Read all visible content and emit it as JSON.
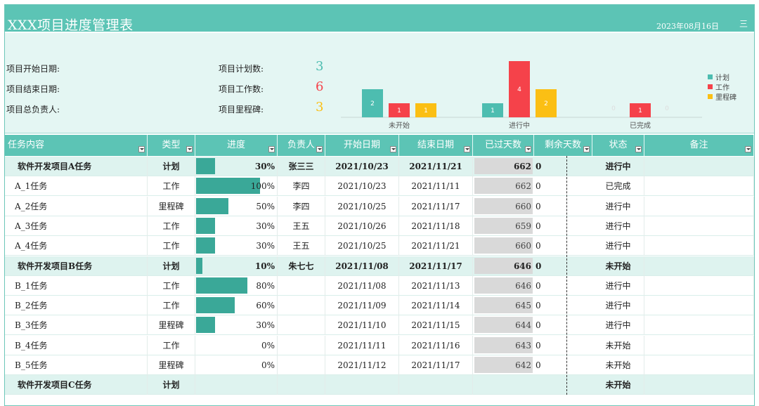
{
  "header": {
    "title": "XXX项目进度管理表",
    "date": "2023年08月16日",
    "menu_glyph": "三"
  },
  "summary": {
    "start_date_label": "项目开始日期:",
    "end_date_label": "项目结束日期:",
    "owner_label": "项目总负责人:",
    "plan_count_label": "项目计划数:",
    "work_count_label": "项目工作数:",
    "milestone_count_label": "项目里程碑:",
    "plan_count": "3",
    "work_count": "6",
    "milestone_count": "3"
  },
  "colors": {
    "plan": "#4dbdb0",
    "work": "#f5424a",
    "milestone": "#fbbf14",
    "header": "#5cc4b5"
  },
  "chart_data": {
    "type": "bar",
    "categories": [
      "未开始",
      "进行中",
      "已完成"
    ],
    "series": [
      {
        "name": "计划",
        "values": [
          2,
          1,
          0
        ]
      },
      {
        "name": "工作",
        "values": [
          1,
          4,
          1
        ]
      },
      {
        "name": "里程碑",
        "values": [
          1,
          2,
          0
        ]
      }
    ],
    "legend_position": "right",
    "ylim": [
      0,
      4
    ]
  },
  "table": {
    "headers": [
      "任务内容",
      "类型",
      "进度",
      "负责人",
      "开始日期",
      "结束日期",
      "已过天数",
      "剩余天数",
      "状态",
      "备注"
    ],
    "rows": [
      {
        "group": true,
        "task": "软件开发项目A任务",
        "type": "计划",
        "progress": 30,
        "progress_text": "30%",
        "owner": "张三三",
        "start": "2021/10/23",
        "end": "2021/11/21",
        "elapsed": "662",
        "remain": "0",
        "status": "进行中",
        "note": ""
      },
      {
        "group": false,
        "task": "A_1任务",
        "type": "工作",
        "progress": 100,
        "progress_text": "100%",
        "owner": "李四",
        "start": "2021/10/23",
        "end": "2021/11/11",
        "elapsed": "662",
        "remain": "0",
        "status": "已完成",
        "note": ""
      },
      {
        "group": false,
        "task": "A_2任务",
        "type": "里程碑",
        "progress": 50,
        "progress_text": "50%",
        "owner": "李四",
        "start": "2021/10/25",
        "end": "2021/11/17",
        "elapsed": "660",
        "remain": "0",
        "status": "进行中",
        "note": ""
      },
      {
        "group": false,
        "task": "A_3任务",
        "type": "工作",
        "progress": 30,
        "progress_text": "30%",
        "owner": "王五",
        "start": "2021/10/26",
        "end": "2021/11/18",
        "elapsed": "659",
        "remain": "0",
        "status": "进行中",
        "note": ""
      },
      {
        "group": false,
        "task": "A_4任务",
        "type": "工作",
        "progress": 30,
        "progress_text": "30%",
        "owner": "王五",
        "start": "2021/10/25",
        "end": "2021/11/21",
        "elapsed": "660",
        "remain": "0",
        "status": "进行中",
        "note": ""
      },
      {
        "group": true,
        "task": "软件开发项目B任务",
        "type": "计划",
        "progress": 10,
        "progress_text": "10%",
        "owner": "朱七七",
        "start": "2021/11/08",
        "end": "2021/11/17",
        "elapsed": "646",
        "remain": "0",
        "status": "未开始",
        "note": ""
      },
      {
        "group": false,
        "task": "B_1任务",
        "type": "工作",
        "progress": 80,
        "progress_text": "80%",
        "owner": "",
        "start": "2021/11/08",
        "end": "2021/11/13",
        "elapsed": "646",
        "remain": "0",
        "status": "进行中",
        "note": ""
      },
      {
        "group": false,
        "task": "B_2任务",
        "type": "工作",
        "progress": 60,
        "progress_text": "60%",
        "owner": "",
        "start": "2021/11/09",
        "end": "2021/11/14",
        "elapsed": "645",
        "remain": "0",
        "status": "进行中",
        "note": ""
      },
      {
        "group": false,
        "task": "B_3任务",
        "type": "里程碑",
        "progress": 30,
        "progress_text": "30%",
        "owner": "",
        "start": "2021/11/10",
        "end": "2021/11/15",
        "elapsed": "644",
        "remain": "0",
        "status": "进行中",
        "note": ""
      },
      {
        "group": false,
        "task": "B_4任务",
        "type": "工作",
        "progress": 0,
        "progress_text": "0%",
        "owner": "",
        "start": "2021/11/11",
        "end": "2021/11/16",
        "elapsed": "643",
        "remain": "0",
        "status": "未开始",
        "note": ""
      },
      {
        "group": false,
        "task": "B_5任务",
        "type": "里程碑",
        "progress": 0,
        "progress_text": "0%",
        "owner": "",
        "start": "2021/11/12",
        "end": "2021/11/17",
        "elapsed": "642",
        "remain": "0",
        "status": "未开始",
        "note": ""
      },
      {
        "group": true,
        "task": "软件开发项目C任务",
        "type": "计划",
        "progress": null,
        "progress_text": "",
        "owner": "",
        "start": "",
        "end": "",
        "elapsed": "",
        "remain": "",
        "status": "未开始",
        "note": ""
      }
    ]
  }
}
